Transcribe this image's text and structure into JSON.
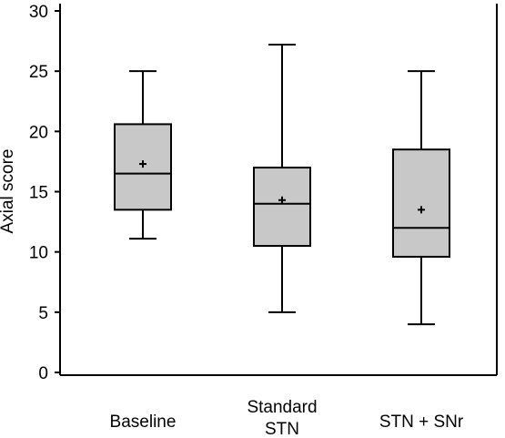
{
  "chart_data": {
    "type": "box",
    "ylabel": "Axial score",
    "ylim": [
      0,
      30
    ],
    "yticks": [
      0,
      5,
      10,
      15,
      20,
      25,
      30
    ],
    "categories": [
      [
        "Baseline"
      ],
      [
        "Standard",
        "STN"
      ],
      [
        "STN + SNr"
      ]
    ],
    "boxes": [
      {
        "whisker_low": 11.1,
        "q1": 13.5,
        "median": 16.5,
        "q3": 20.6,
        "whisker_high": 25.0,
        "mean": 17.3
      },
      {
        "whisker_low": 5.0,
        "q1": 10.5,
        "median": 14.0,
        "q3": 17.0,
        "whisker_high": 27.2,
        "mean": 14.3
      },
      {
        "whisker_low": 4.0,
        "q1": 9.6,
        "median": 12.0,
        "q3": 18.5,
        "whisker_high": 25.0,
        "mean": 13.5
      }
    ],
    "box_fill": "#c8c8c8",
    "grid": false,
    "legend": false
  }
}
